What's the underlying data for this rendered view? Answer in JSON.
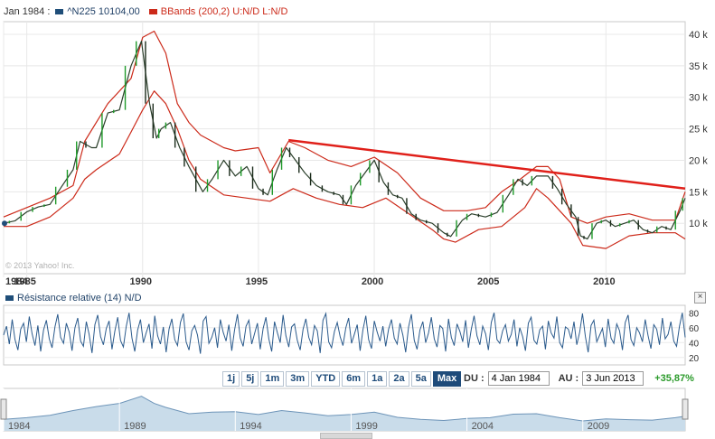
{
  "header": {
    "date_label": "Jan 1984 :",
    "series_label": "^N225 10104,00",
    "indicator_label": "BBands (200,2) U:N/D L:N/D",
    "series_color": "#1f4e79",
    "indicator_color": "#cc2a1a"
  },
  "watermark": "© 2013 Yahoo! Inc.",
  "chart_data": [
    {
      "type": "line",
      "x_ticks": [
        "1984",
        "1985",
        "1990",
        "1995",
        "2000",
        "2005",
        "2010"
      ],
      "y_ticks": [
        "10 k",
        "15 k",
        "20 k",
        "25 k",
        "30 k",
        "35 k",
        "40 k"
      ],
      "ylim": [
        2000,
        42000
      ],
      "grid": true,
      "series": [
        {
          "name": "^N225",
          "x": [
            1984.0,
            1984.5,
            1985.0,
            1985.5,
            1986.0,
            1986.5,
            1987.0,
            1987.3,
            1987.8,
            1988.0,
            1988.5,
            1989.0,
            1989.5,
            1989.95,
            1990.3,
            1990.6,
            1990.8,
            1991.2,
            1991.6,
            1992.0,
            1992.6,
            1993.0,
            1993.5,
            1994.0,
            1994.5,
            1995.0,
            1995.4,
            1995.8,
            1996.2,
            1996.5,
            1997.0,
            1997.5,
            1998.0,
            1998.5,
            1998.8,
            1999.2,
            1999.6,
            2000.0,
            2000.4,
            2000.8,
            2001.2,
            2001.6,
            2002.0,
            2002.5,
            2003.0,
            2003.3,
            2003.8,
            2004.2,
            2004.8,
            2005.3,
            2005.8,
            2006.2,
            2006.6,
            2007.0,
            2007.5,
            2007.9,
            2008.3,
            2008.7,
            2008.9,
            2009.2,
            2009.6,
            2010.0,
            2010.4,
            2010.8,
            2011.2,
            2011.6,
            2012.0,
            2012.4,
            2012.8,
            2013.2,
            2013.42
          ],
          "values": [
            10000,
            10400,
            11800,
            12600,
            13000,
            15800,
            18500,
            23000,
            22000,
            22000,
            27500,
            28000,
            35000,
            38900,
            29000,
            23500,
            25000,
            26000,
            22000,
            19000,
            15000,
            17000,
            20000,
            17500,
            19000,
            15500,
            14500,
            18500,
            22000,
            20500,
            18000,
            16000,
            15000,
            14500,
            13000,
            16000,
            18000,
            20000,
            16500,
            14500,
            14000,
            11500,
            10500,
            10000,
            8500,
            7900,
            10500,
            11500,
            11000,
            11700,
            14500,
            17000,
            16000,
            17500,
            17500,
            15500,
            13000,
            11000,
            8000,
            7500,
            10000,
            10500,
            9500,
            10000,
            10500,
            9000,
            8500,
            9500,
            9000,
            12000,
            14000
          ]
        },
        {
          "name": "BBands upper",
          "x": [
            1984.0,
            1985.0,
            1986.0,
            1987.0,
            1987.5,
            1988.5,
            1989.5,
            1990.0,
            1990.5,
            1991.0,
            1991.5,
            1992.0,
            1992.5,
            1993.5,
            1994.0,
            1995.0,
            1995.5,
            1996.3,
            1997.0,
            1998.0,
            1999.0,
            2000.0,
            2001.0,
            2002.0,
            2003.0,
            2004.0,
            2004.8,
            2005.5,
            2006.3,
            2007.0,
            2007.5,
            2008.0,
            2008.5,
            2009.2,
            2010.0,
            2011.0,
            2012.0,
            2013.0,
            2013.42
          ],
          "values": [
            11000,
            12500,
            14000,
            16000,
            23000,
            29000,
            33000,
            39500,
            40500,
            37000,
            29000,
            26000,
            24000,
            22000,
            21500,
            22000,
            18000,
            23000,
            22000,
            20000,
            19000,
            20500,
            18000,
            14000,
            12000,
            12000,
            12500,
            15000,
            17000,
            19000,
            19000,
            17000,
            11000,
            10000,
            11000,
            11500,
            10500,
            10500,
            15000
          ]
        },
        {
          "name": "BBands lower",
          "x": [
            1984.0,
            1985.0,
            1986.0,
            1987.0,
            1987.5,
            1988.0,
            1989.0,
            1989.5,
            1990.0,
            1990.5,
            1991.0,
            1991.5,
            1992.0,
            1992.5,
            1993.5,
            1994.5,
            1995.5,
            1996.5,
            1997.5,
            1998.5,
            1999.5,
            2000.5,
            2001.5,
            2002.5,
            2003.0,
            2003.5,
            2004.5,
            2005.5,
            2006.5,
            2007.0,
            2007.5,
            2008.5,
            2009.0,
            2010.0,
            2011.0,
            2012.0,
            2013.0,
            2013.42
          ],
          "values": [
            9500,
            9500,
            11000,
            14000,
            17000,
            18500,
            21000,
            24500,
            28000,
            31000,
            29000,
            25000,
            20000,
            17000,
            14500,
            14000,
            13500,
            15500,
            14000,
            13000,
            12500,
            14000,
            11500,
            9000,
            7500,
            7000,
            9000,
            9500,
            12500,
            15500,
            14000,
            10000,
            6500,
            6000,
            8000,
            8500,
            8500,
            7500
          ]
        },
        {
          "name": "Resistance trend line",
          "x": [
            1996.3,
            2013.42
          ],
          "values": [
            23200,
            15500
          ]
        }
      ]
    },
    {
      "type": "line",
      "title": "Résistance relative (14) N/D",
      "y_ticks": [
        "80",
        "60",
        "40",
        "20"
      ],
      "ylim": [
        10,
        90
      ],
      "series": [
        {
          "name": "RSI (14)",
          "x_start": 1984.0,
          "x_end": 2013.42,
          "values": [
            50,
            62,
            38,
            71,
            44,
            30,
            58,
            66,
            41,
            75,
            52,
            36,
            63,
            28,
            57,
            70,
            45,
            33,
            61,
            78,
            47,
            39,
            66,
            54,
            29,
            60,
            73,
            42,
            35,
            68,
            51,
            26,
            64,
            77,
            48,
            37,
            59,
            69,
            31,
            55,
            74,
            43,
            34,
            62,
            80,
            46,
            28,
            57,
            71,
            40,
            53,
            65,
            32,
            76,
            49,
            38,
            61,
            27,
            58,
            72,
            44,
            36,
            67,
            79,
            41,
            30,
            56,
            63,
            50,
            25,
            69,
            75,
            39,
            47,
            60,
            33,
            71,
            54,
            42,
            64,
            29,
            57,
            78,
            46,
            35,
            62,
            70,
            38,
            52,
            66,
            31,
            59,
            74,
            45,
            28,
            68,
            53,
            40,
            77,
            49,
            34,
            61,
            65,
            43,
            30,
            58,
            72,
            47,
            37,
            63,
            56,
            26,
            70,
            79,
            41,
            33,
            55,
            67,
            48,
            36,
            60,
            73,
            39,
            51,
            64,
            29,
            57,
            76,
            44,
            32,
            69,
            54,
            42,
            62,
            35,
            58,
            71,
            46,
            38,
            66,
            50,
            27,
            61,
            78,
            43,
            31,
            57,
            68,
            40,
            53,
            74,
            45,
            34,
            63,
            59,
            28,
            72,
            47,
            36,
            65,
            55,
            41,
            70,
            33,
            58,
            76,
            49,
            37,
            62,
            52,
            30,
            67,
            80,
            44,
            39,
            56,
            64,
            42,
            51,
            71,
            35,
            60,
            48,
            29,
            66,
            74,
            43,
            38,
            57,
            62,
            31,
            69,
            53,
            46,
            75,
            40,
            33,
            61,
            58,
            45,
            68,
            37,
            54,
            79,
            48,
            27,
            63,
            70,
            41,
            50,
            59,
            34,
            72,
            46,
            39,
            65,
            56,
            30,
            67,
            77,
            44,
            36,
            60,
            53,
            41,
            71,
            49,
            32,
            64,
            58,
            37,
            73,
            45,
            51,
            68,
            42,
            35,
            62,
            80,
            47
          ]
        }
      ]
    },
    {
      "type": "area",
      "x_ticks": [
        "1984",
        "1989",
        "1994",
        "1999",
        "2004",
        "2009"
      ],
      "series": [
        {
          "name": "Navigator",
          "x": [
            1984.0,
            1985.0,
            1986.0,
            1987.0,
            1988.0,
            1989.0,
            1989.95,
            1990.5,
            1991.0,
            1992.0,
            1993.0,
            1994.0,
            1995.0,
            1996.0,
            1997.0,
            1998.0,
            1999.0,
            2000.0,
            2001.0,
            2002.0,
            2003.0,
            2004.0,
            2005.0,
            2006.0,
            2007.0,
            2008.0,
            2009.0,
            2010.0,
            2011.0,
            2012.0,
            2013.0,
            2013.42
          ],
          "values": [
            10000,
            12000,
            15000,
            21000,
            26000,
            30000,
            38900,
            30000,
            25000,
            17000,
            19000,
            19500,
            16000,
            21000,
            18000,
            14500,
            16000,
            19000,
            12500,
            10000,
            8500,
            11000,
            12000,
            16500,
            17000,
            12000,
            8000,
            10500,
            9500,
            9000,
            12000,
            14000
          ]
        }
      ]
    }
  ],
  "rsi_panel": {
    "title": "Résistance relative (14) N/D",
    "close_label": "×"
  },
  "range_buttons": [
    "1j",
    "5j",
    "1m",
    "3m",
    "YTD",
    "6m",
    "1a",
    "2a",
    "5a",
    "Max"
  ],
  "range_active": "Max",
  "date_range": {
    "from_label": "DU :",
    "from_value": "4 Jan 1984",
    "to_label": "AU :",
    "to_value": "3 Jun 2013",
    "change": "+35,87%"
  }
}
